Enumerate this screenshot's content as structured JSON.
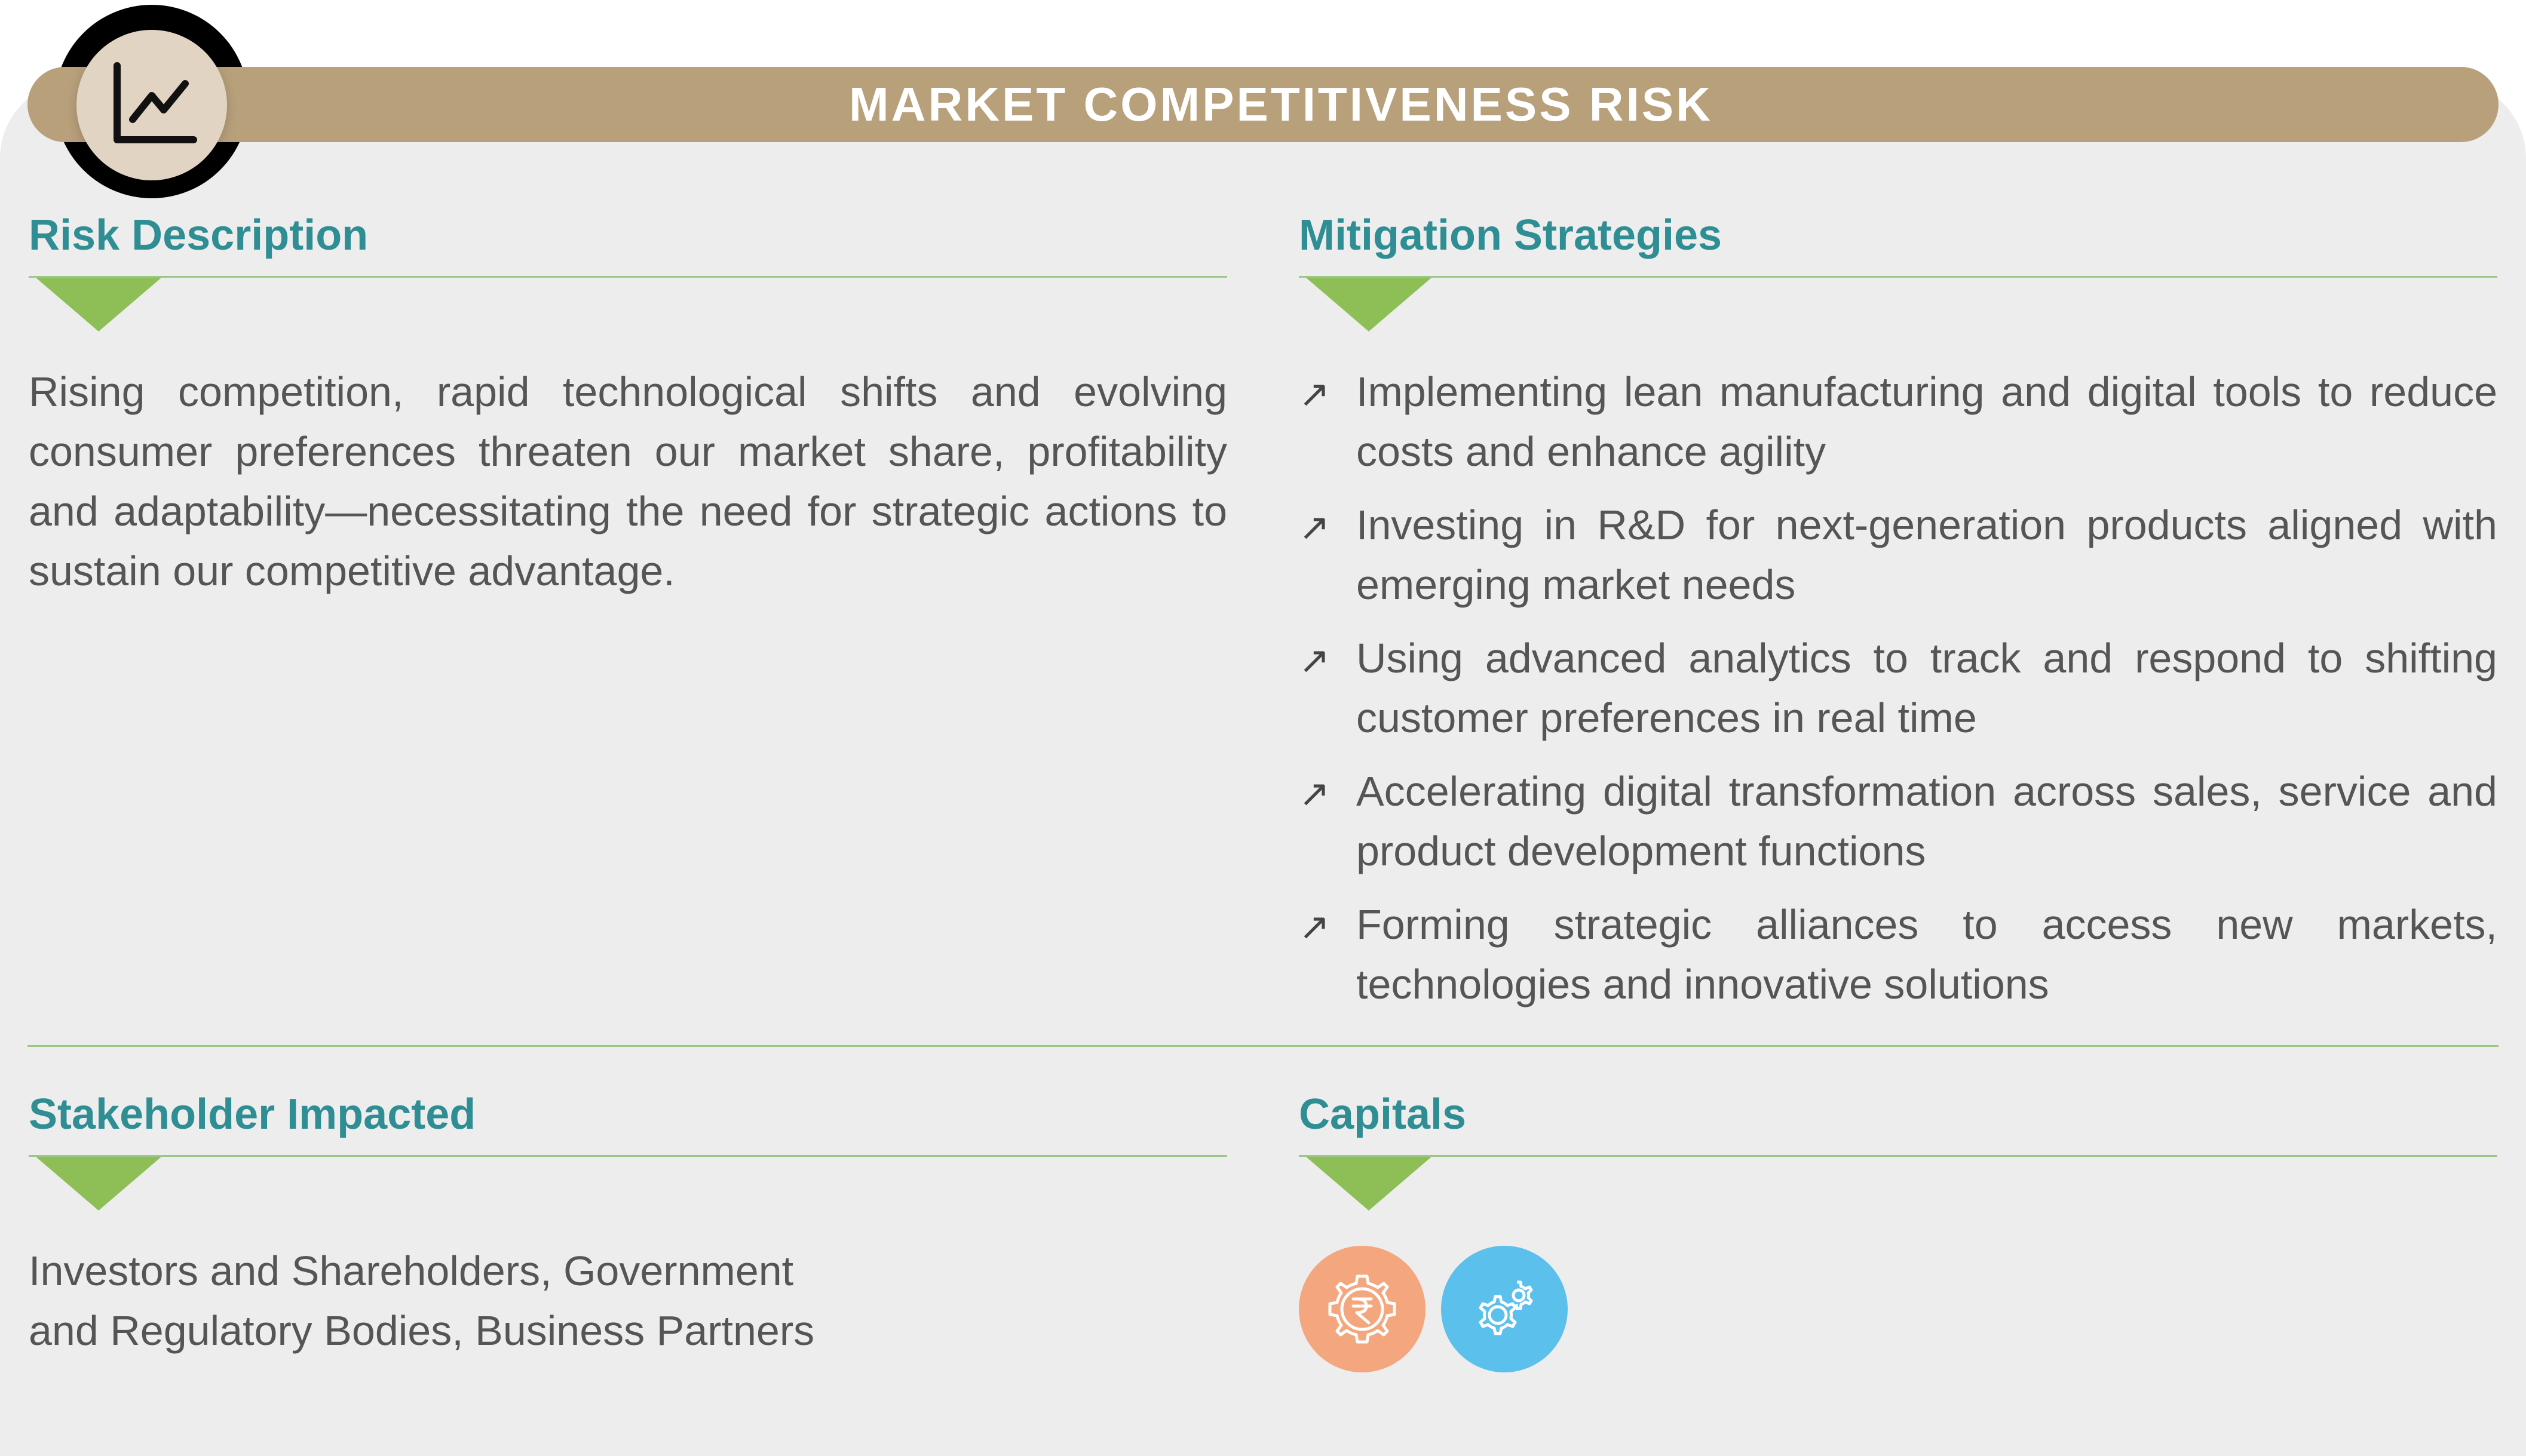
{
  "header": {
    "title": "MARKET COMPETITIVENESS RISK",
    "icon": "line-chart-icon"
  },
  "risk_description": {
    "heading": "Risk Description",
    "text": "Rising competition, rapid technological shifts and evolving consumer preferences threaten our market share, profitability and adaptability—necessitating the need for strategic actions to sustain our competitive advantage."
  },
  "mitigation": {
    "heading": "Mitigation Strategies",
    "bullet": "↗",
    "items": [
      "Implementing lean manufacturing and digital tools to reduce costs and enhance agility",
      "Investing in R&D for next-generation products aligned with emerging market needs",
      "Using advanced analytics to track and respond to shifting customer preferences in real time",
      "Accelerating digital transformation across sales, service and product development functions",
      "Forming strategic alliances to access new markets, technologies and innovative solutions"
    ]
  },
  "stakeholders": {
    "heading": "Stakeholder Impacted",
    "line1": "Investors and Shareholders, Government",
    "line2": "and Regulatory Bodies, Business Partners"
  },
  "capitals": {
    "heading": "Capitals",
    "items": [
      {
        "icon": "rupee-gear-icon",
        "color": "#f4a77e"
      },
      {
        "icon": "gears-icon",
        "color": "#5bc0ec"
      }
    ]
  },
  "colors": {
    "header_bar": "#b8a07b",
    "heading_teal": "#2f8e94",
    "rule_green": "#9bc68a",
    "arrow_green": "#8ebe56",
    "card_bg": "#ededed"
  }
}
